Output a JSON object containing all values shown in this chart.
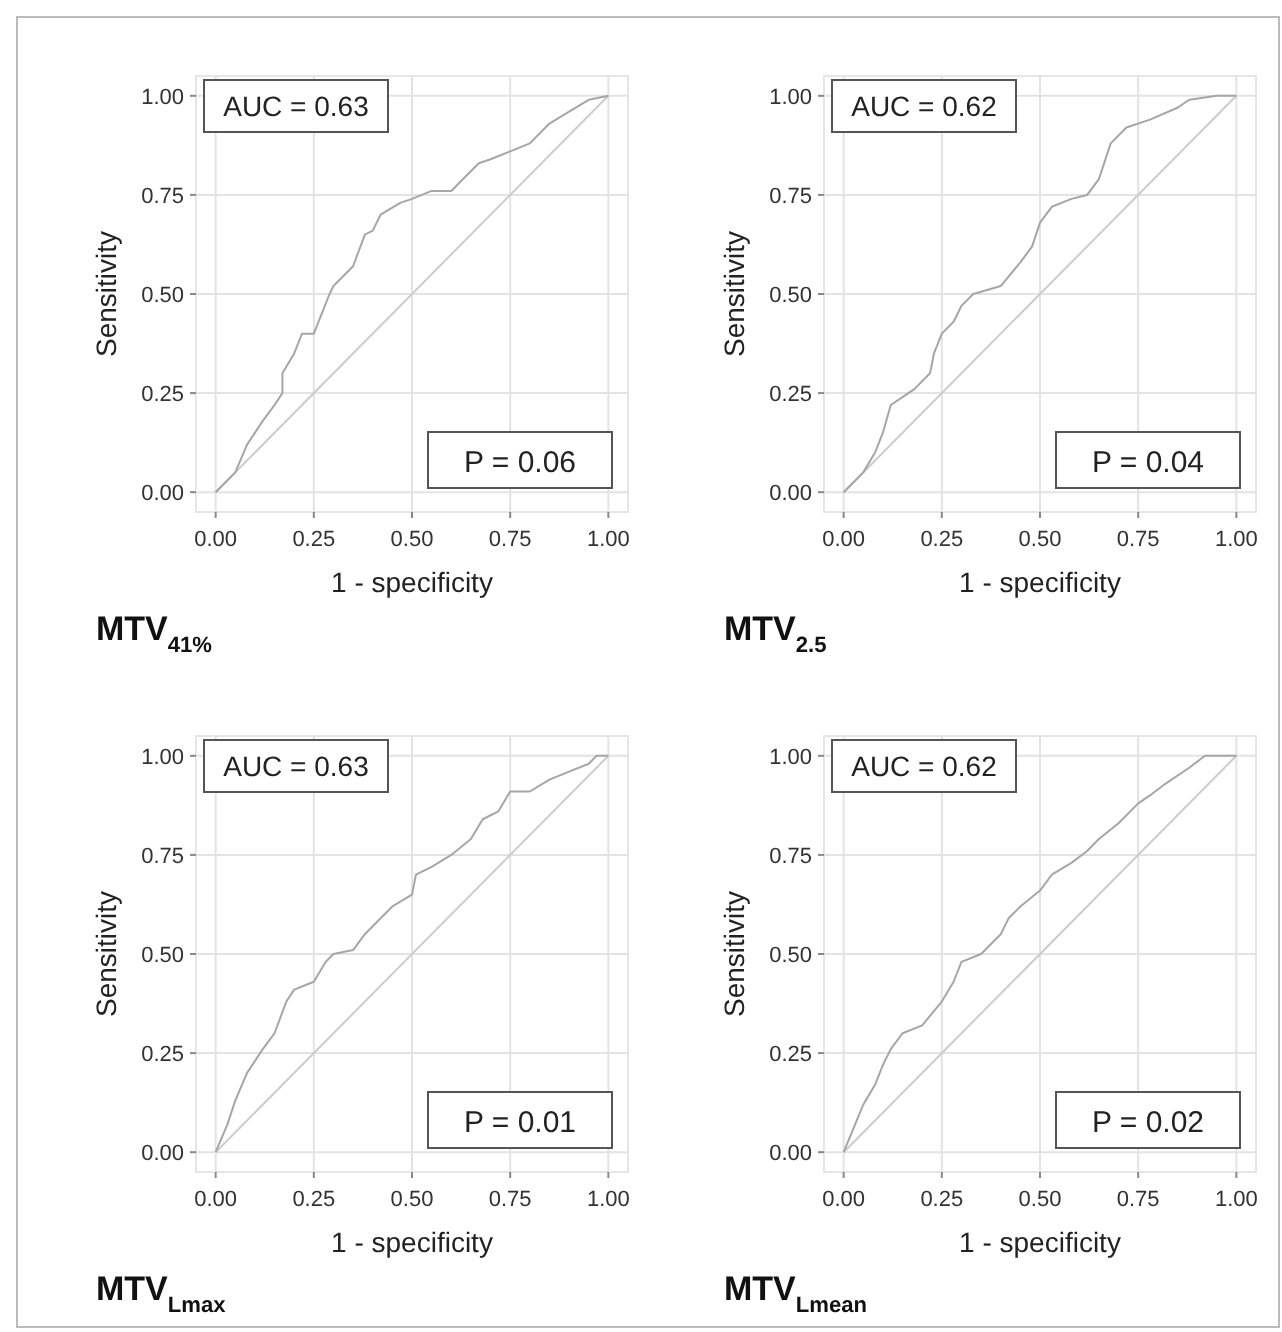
{
  "chart_data": [
    {
      "type": "line",
      "title": "MTV$_{41%}$",
      "xlabel": "1 - specificity",
      "ylabel": "Sensitivity",
      "xlim": [
        -0.05,
        1.05
      ],
      "ylim": [
        -0.05,
        1.05
      ],
      "xticks": [
        {
          "value": 0,
          "label": "0.00"
        },
        {
          "value": 0.25,
          "label": "0.25"
        },
        {
          "value": 0.5,
          "label": "0.50"
        },
        {
          "value": 0.75,
          "label": "0.75"
        },
        {
          "value": 1,
          "label": "1.00"
        }
      ],
      "yticks": [
        {
          "value": 0,
          "label": "0.00"
        },
        {
          "value": 0.25,
          "label": "0.25"
        },
        {
          "value": 0.5,
          "label": "0.50"
        },
        {
          "value": 0.75,
          "label": "0.75"
        },
        {
          "value": 1,
          "label": "1.00"
        }
      ],
      "grid": true,
      "marker": "none",
      "annotations": [
        "AUC = 0.63",
        "P = 0.06"
      ],
      "series": [
        {
          "color": "#a6a6a6",
          "x": [
            0,
            0.05,
            0.08,
            0.12,
            0.15,
            0.17,
            0.17,
            0.2,
            0.22,
            0.25,
            0.27,
            0.29,
            0.3,
            0.35,
            0.38,
            0.4,
            0.42,
            0.47,
            0.5,
            0.55,
            0.6,
            0.63,
            0.67,
            0.7,
            0.75,
            0.8,
            0.85,
            0.9,
            0.95,
            1
          ],
          "values": [
            0,
            0.05,
            0.12,
            0.18,
            0.22,
            0.25,
            0.3,
            0.35,
            0.4,
            0.4,
            0.45,
            0.5,
            0.52,
            0.57,
            0.65,
            0.66,
            0.7,
            0.73,
            0.74,
            0.76,
            0.76,
            0.79,
            0.83,
            0.84,
            0.86,
            0.88,
            0.93,
            0.96,
            0.99,
            1
          ]
        },
        {
          "color": "#cccccc",
          "x": [
            0,
            1
          ],
          "values": [
            0,
            1
          ]
        }
      ]
    },
    {
      "type": "line",
      "title": "MTV$_{2.5}$",
      "xlabel": "1 - specificity",
      "ylabel": "Sensitivity",
      "xlim": [
        -0.05,
        1.05
      ],
      "ylim": [
        -0.05,
        1.05
      ],
      "xticks": [
        {
          "value": 0,
          "label": "0.00"
        },
        {
          "value": 0.25,
          "label": "0.25"
        },
        {
          "value": 0.5,
          "label": "0.50"
        },
        {
          "value": 0.75,
          "label": "0.75"
        },
        {
          "value": 1,
          "label": "1.00"
        }
      ],
      "yticks": [
        {
          "value": 0,
          "label": "0.00"
        },
        {
          "value": 0.25,
          "label": "0.25"
        },
        {
          "value": 0.5,
          "label": "0.50"
        },
        {
          "value": 0.75,
          "label": "0.75"
        },
        {
          "value": 1,
          "label": "1.00"
        }
      ],
      "grid": true,
      "marker": "none",
      "annotations": [
        "AUC = 0.62",
        "P = 0.04"
      ],
      "series": [
        {
          "color": "#a6a6a6",
          "x": [
            0,
            0.05,
            0.08,
            0.1,
            0.12,
            0.15,
            0.18,
            0.22,
            0.23,
            0.25,
            0.28,
            0.3,
            0.33,
            0.4,
            0.45,
            0.48,
            0.5,
            0.53,
            0.58,
            0.62,
            0.65,
            0.68,
            0.72,
            0.78,
            0.85,
            0.88,
            0.95,
            1
          ],
          "values": [
            0,
            0.05,
            0.1,
            0.15,
            0.22,
            0.24,
            0.26,
            0.3,
            0.35,
            0.4,
            0.43,
            0.47,
            0.5,
            0.52,
            0.58,
            0.62,
            0.68,
            0.72,
            0.74,
            0.75,
            0.79,
            0.88,
            0.92,
            0.94,
            0.97,
            0.99,
            1,
            1
          ]
        },
        {
          "color": "#cccccc",
          "x": [
            0,
            1
          ],
          "values": [
            0,
            1
          ]
        }
      ]
    },
    {
      "type": "line",
      "title": "MTV$_{Lmax}$",
      "xlabel": "1 - specificity",
      "ylabel": "Sensitivity",
      "xlim": [
        -0.05,
        1.05
      ],
      "ylim": [
        -0.05,
        1.05
      ],
      "xticks": [
        {
          "value": 0,
          "label": "0.00"
        },
        {
          "value": 0.25,
          "label": "0.25"
        },
        {
          "value": 0.5,
          "label": "0.50"
        },
        {
          "value": 0.75,
          "label": "0.75"
        },
        {
          "value": 1,
          "label": "1.00"
        }
      ],
      "yticks": [
        {
          "value": 0,
          "label": "0.00"
        },
        {
          "value": 0.25,
          "label": "0.25"
        },
        {
          "value": 0.5,
          "label": "0.50"
        },
        {
          "value": 0.75,
          "label": "0.75"
        },
        {
          "value": 1,
          "label": "1.00"
        }
      ],
      "grid": true,
      "marker": "none",
      "annotations": [
        "AUC = 0.63",
        "P = 0.01"
      ],
      "series": [
        {
          "color": "#a6a6a6",
          "x": [
            0,
            0.03,
            0.05,
            0.08,
            0.12,
            0.15,
            0.18,
            0.2,
            0.25,
            0.28,
            0.3,
            0.35,
            0.38,
            0.42,
            0.45,
            0.5,
            0.51,
            0.55,
            0.6,
            0.65,
            0.68,
            0.72,
            0.75,
            0.8,
            0.85,
            0.9,
            0.95,
            0.97,
            1
          ],
          "values": [
            0,
            0.07,
            0.13,
            0.2,
            0.26,
            0.3,
            0.38,
            0.41,
            0.43,
            0.48,
            0.5,
            0.51,
            0.55,
            0.59,
            0.62,
            0.65,
            0.7,
            0.72,
            0.75,
            0.79,
            0.84,
            0.86,
            0.91,
            0.91,
            0.94,
            0.96,
            0.98,
            1,
            1
          ]
        },
        {
          "color": "#cccccc",
          "x": [
            0,
            1
          ],
          "values": [
            0,
            1
          ]
        }
      ]
    },
    {
      "type": "line",
      "title": "MTV$_{Lmean}$",
      "xlabel": "1 - specificity",
      "ylabel": "Sensitivity",
      "xlim": [
        -0.05,
        1.05
      ],
      "ylim": [
        -0.05,
        1.05
      ],
      "xticks": [
        {
          "value": 0,
          "label": "0.00"
        },
        {
          "value": 0.25,
          "label": "0.25"
        },
        {
          "value": 0.5,
          "label": "0.50"
        },
        {
          "value": 0.75,
          "label": "0.75"
        },
        {
          "value": 1,
          "label": "1.00"
        }
      ],
      "yticks": [
        {
          "value": 0,
          "label": "0.00"
        },
        {
          "value": 0.25,
          "label": "0.25"
        },
        {
          "value": 0.5,
          "label": "0.50"
        },
        {
          "value": 0.75,
          "label": "0.75"
        },
        {
          "value": 1,
          "label": "1.00"
        }
      ],
      "grid": true,
      "marker": "none",
      "annotations": [
        "AUC = 0.62",
        "P = 0.02"
      ],
      "series": [
        {
          "color": "#a6a6a6",
          "x": [
            0,
            0.05,
            0.08,
            0.1,
            0.12,
            0.15,
            0.2,
            0.25,
            0.28,
            0.3,
            0.35,
            0.4,
            0.42,
            0.45,
            0.5,
            0.53,
            0.58,
            0.62,
            0.65,
            0.7,
            0.75,
            0.78,
            0.82,
            0.88,
            0.92,
            1
          ],
          "values": [
            0,
            0.12,
            0.17,
            0.22,
            0.26,
            0.3,
            0.32,
            0.38,
            0.43,
            0.48,
            0.5,
            0.55,
            0.59,
            0.62,
            0.66,
            0.7,
            0.73,
            0.76,
            0.79,
            0.83,
            0.88,
            0.9,
            0.93,
            0.97,
            1,
            1
          ]
        },
        {
          "color": "#cccccc",
          "x": [
            0,
            1
          ],
          "values": [
            0,
            1
          ]
        }
      ]
    }
  ]
}
